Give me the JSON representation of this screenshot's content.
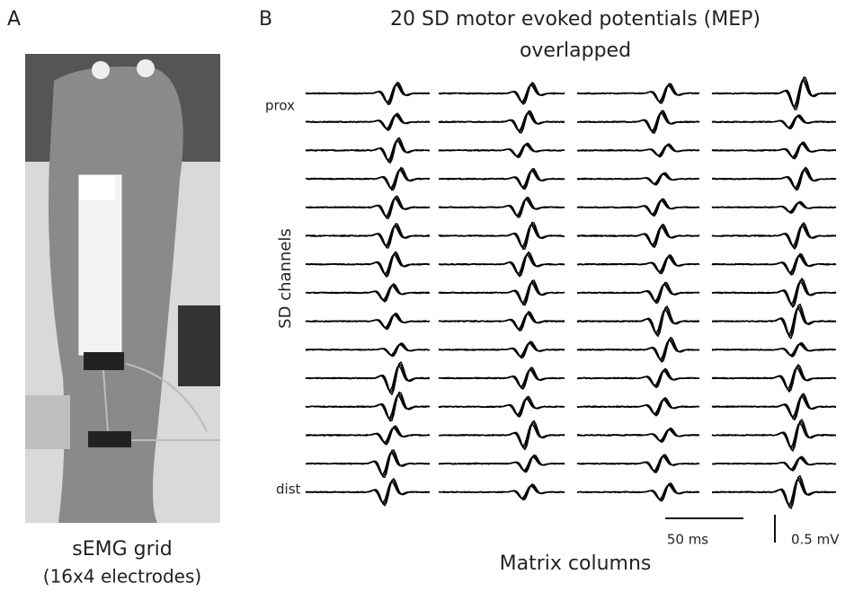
{
  "panel_a": {
    "label": "A",
    "caption": "sEMG grid",
    "subcaption": "(16x4 electrodes)"
  },
  "panel_b": {
    "label": "B",
    "title": "20 SD motor evoked potentials (MEP)",
    "subtitle": "overlapped",
    "top_label": "prox",
    "bottom_label": "dist",
    "y_label": "SD channels",
    "x_label": "Matrix columns",
    "time_scale": "50 ms",
    "amplitude_scale": "0.5 mV"
  }
}
